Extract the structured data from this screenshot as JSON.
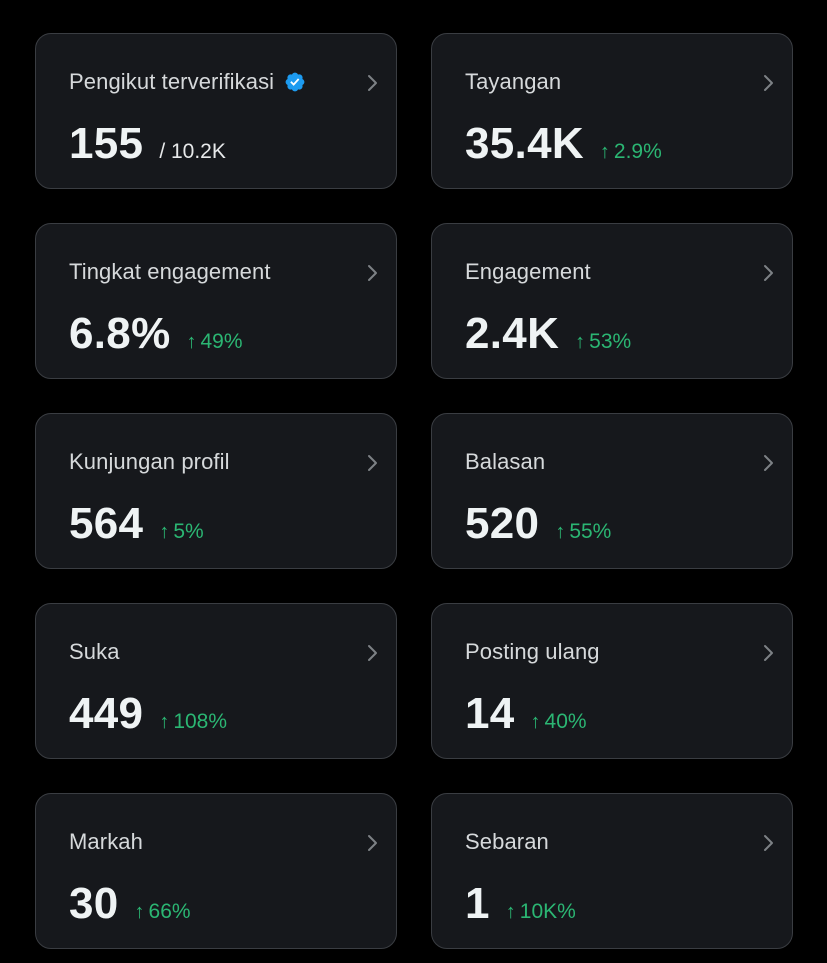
{
  "colors": {
    "background": "#000000",
    "card_background": "#16181c",
    "card_border": "#3a3d42",
    "positive": "#2bb673",
    "verified": "#1d9bf0"
  },
  "cards": [
    {
      "label": "Pengikut terverifikasi",
      "value": "155",
      "total": "/ 10.2K",
      "icon": "verified-badge-icon"
    },
    {
      "label": "Tayangan",
      "value": "35.4K",
      "delta": "2.9%"
    },
    {
      "label": "Tingkat engagement",
      "value": "6.8%",
      "delta": "49%"
    },
    {
      "label": "Engagement",
      "value": "2.4K",
      "delta": "53%"
    },
    {
      "label": "Kunjungan profil",
      "value": "564",
      "delta": "5%"
    },
    {
      "label": "Balasan",
      "value": "520",
      "delta": "55%"
    },
    {
      "label": "Suka",
      "value": "449",
      "delta": "108%"
    },
    {
      "label": "Posting ulang",
      "value": "14",
      "delta": "40%"
    },
    {
      "label": "Markah",
      "value": "30",
      "delta": "66%"
    },
    {
      "label": "Sebaran",
      "value": "1",
      "delta": "10K%"
    }
  ],
  "delta_arrow": "↑"
}
